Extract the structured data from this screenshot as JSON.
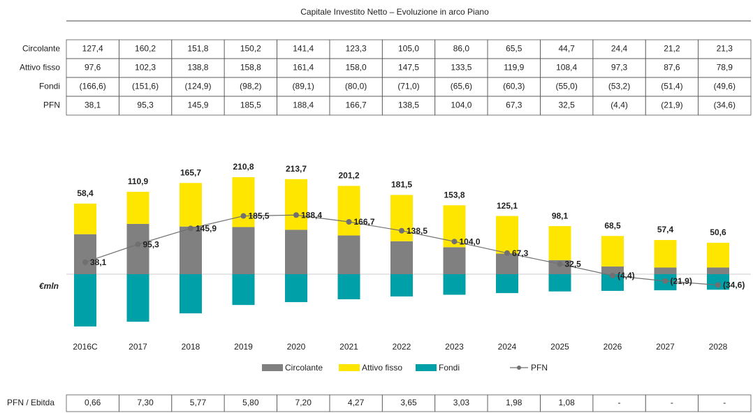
{
  "title": "Capitale Investito Netto – Evoluzione in arco Piano",
  "table": {
    "rows": [
      {
        "label": "Circolante",
        "cells": [
          "127,4",
          "160,2",
          "151,8",
          "150,2",
          "141,4",
          "123,3",
          "105,0",
          "86,0",
          "65,5",
          "44,7",
          "24,4",
          "21,2",
          "21,3"
        ]
      },
      {
        "label": "Attivo fisso",
        "cells": [
          "97,6",
          "102,3",
          "138,8",
          "158,8",
          "161,4",
          "158,0",
          "147,5",
          "133,5",
          "119,9",
          "108,4",
          "97,3",
          "87,6",
          "78,9"
        ]
      },
      {
        "label": "Fondi",
        "cells": [
          "(166,6)",
          "(151,6)",
          "(124,9)",
          "(98,2)",
          "(89,1)",
          "(80,0)",
          "(71,0)",
          "(65,6)",
          "(60,3)",
          "(55,0)",
          "(53,2)",
          "(51,4)",
          "(49,6)"
        ]
      },
      {
        "label": "PFN",
        "cells": [
          "38,1",
          "95,3",
          "145,9",
          "185,5",
          "188,4",
          "166,7",
          "138,5",
          "104,0",
          "67,3",
          "32,5",
          "(4,4)",
          "(21,9)",
          "(34,6)"
        ]
      }
    ]
  },
  "chart_data": {
    "type": "bar",
    "stacked": true,
    "y_label": "€mln",
    "categories": [
      "2016C",
      "2017",
      "2018",
      "2019",
      "2020",
      "2021",
      "2022",
      "2023",
      "2024",
      "2025",
      "2026",
      "2027",
      "2028"
    ],
    "series": [
      {
        "name": "Circolante",
        "color": "#808080",
        "values": [
          127.4,
          160.2,
          151.8,
          150.2,
          141.4,
          123.3,
          105.0,
          86.0,
          65.5,
          44.7,
          24.4,
          21.2,
          21.3
        ]
      },
      {
        "name": "Attivo fisso",
        "color": "#ffe600",
        "values": [
          97.6,
          102.3,
          138.8,
          158.8,
          161.4,
          158.0,
          147.5,
          133.5,
          119.9,
          108.4,
          97.3,
          87.6,
          78.9
        ]
      },
      {
        "name": "Fondi",
        "color": "#00a0a8",
        "values": [
          -166.6,
          -151.6,
          -124.9,
          -98.2,
          -89.1,
          -80.0,
          -71.0,
          -65.6,
          -60.3,
          -55.0,
          -53.2,
          -51.4,
          -49.6
        ]
      },
      {
        "name": "PFN",
        "type": "line",
        "color": "#707070",
        "values": [
          38.1,
          95.3,
          145.9,
          185.5,
          188.4,
          166.7,
          138.5,
          104.0,
          67.3,
          32.5,
          -4.4,
          -21.9,
          -34.6
        ],
        "value_labels": [
          "38,1",
          "95,3",
          "145,9",
          "185,5",
          "188,4",
          "166,7",
          "138,5",
          "104,0",
          "67,3",
          "32,5",
          "(4,4)",
          "(21,9)",
          "(34,6)"
        ]
      }
    ],
    "totals": {
      "values": [
        58.4,
        110.9,
        165.7,
        210.8,
        213.7,
        201.2,
        181.5,
        153.8,
        125.1,
        98.1,
        68.5,
        57.4,
        50.6
      ],
      "value_labels": [
        "58,4",
        "110,9",
        "165,7",
        "210,8",
        "213,7",
        "201,2",
        "181,5",
        "153,8",
        "125,1",
        "98,1",
        "68,5",
        "57,4",
        "50,6"
      ]
    }
  },
  "ratio": {
    "label": "PFN / Ebitda",
    "cells": [
      "0,66",
      "7,30",
      "5,77",
      "5,80",
      "7,20",
      "4,27",
      "3,65",
      "3,03",
      "1,98",
      "1,08",
      "-",
      "-",
      "-"
    ]
  }
}
